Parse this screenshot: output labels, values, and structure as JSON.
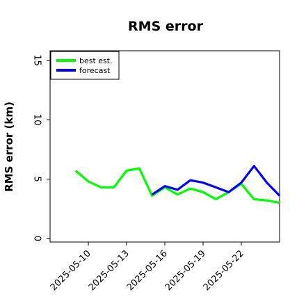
{
  "chart_data": {
    "type": "line",
    "title": "RMS error",
    "xlabel": "",
    "ylabel": "RMS error (km)",
    "x_type": "date",
    "xlim": [
      "2025-05-07T00:00",
      "2025-05-25T00:00"
    ],
    "ylim": [
      -0.3,
      15.8
    ],
    "yticks": [
      0,
      5,
      10,
      15
    ],
    "xticks": [
      "2025-05-10",
      "2025-05-13",
      "2025-05-16",
      "2025-05-19",
      "2025-05-22"
    ],
    "grid": false,
    "legend": "top-left",
    "series": [
      {
        "name": "best est.",
        "color": "#00ff00",
        "x": [
          "2025-05-09",
          "2025-05-10",
          "2025-05-11",
          "2025-05-12",
          "2025-05-13",
          "2025-05-14",
          "2025-05-15",
          "2025-05-16",
          "2025-05-17",
          "2025-05-18",
          "2025-05-19",
          "2025-05-20",
          "2025-05-21",
          "2025-05-22",
          "2025-05-23",
          "2025-05-24",
          "2025-05-25"
        ],
        "values": [
          5.7,
          4.8,
          4.3,
          4.3,
          5.7,
          5.9,
          3.6,
          4.3,
          3.7,
          4.2,
          3.9,
          3.3,
          3.9,
          4.6,
          3.3,
          3.2,
          3.0
        ]
      },
      {
        "name": "forecast",
        "color": "#0000ff",
        "x": [
          "2025-05-15",
          "2025-05-16",
          "2025-05-17",
          "2025-05-18",
          "2025-05-19",
          "2025-05-20",
          "2025-05-21",
          "2025-05-22",
          "2025-05-23",
          "2025-05-24",
          "2025-05-25"
        ],
        "values": [
          3.7,
          4.4,
          4.1,
          4.9,
          4.7,
          4.3,
          3.9,
          4.7,
          6.1,
          4.7,
          3.6
        ]
      }
    ]
  }
}
